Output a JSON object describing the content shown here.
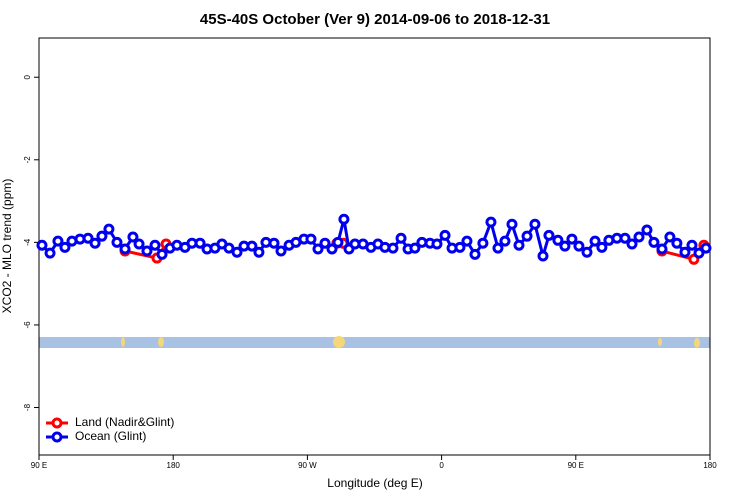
{
  "chart_data": {
    "type": "line",
    "title": "45S-40S October (Ver 9)   2014-09-06 to 2018-12-31",
    "xlabel": "Longitude (deg E)",
    "ylabel": "XCO2 - MLO trend (ppm)",
    "xlim": [
      90,
      540
    ],
    "ylim": [
      -9.15,
      0.95
    ],
    "xticks": [
      {
        "value": 90,
        "label": "90 E"
      },
      180,
      {
        "value": 270,
        "label": "90 W"
      },
      {
        "value": 360,
        "label": "0"
      },
      {
        "value": 450,
        "label": "90 E"
      },
      {
        "value": 540,
        "label": "180"
      }
    ],
    "yticks": [
      0,
      -2,
      -4,
      -6,
      -8
    ],
    "legend": "bottom-left",
    "series": [
      {
        "name": "Land (Nadir&Glint)",
        "color": "#ff0000",
        "x": [
          147.7,
          169.1,
          175.2,
          null,
          289.8,
          293.9,
          null,
          507.8,
          529.2,
          535.9
        ],
        "values": [
          -4.21,
          -4.38,
          -4.04,
          null,
          -4.02,
          -4.02,
          null,
          -4.21,
          -4.41,
          -4.07
        ]
      },
      {
        "name": "Ocean (Glint)",
        "color": "#0000ee",
        "x": [
          92.0,
          97.4,
          102.7,
          107.4,
          112.1,
          117.5,
          122.9,
          127.6,
          132.2,
          136.9,
          142.3,
          147.7,
          153.0,
          157.1,
          162.4,
          167.8,
          172.5,
          177.8,
          182.5,
          187.9,
          192.6,
          198.0,
          202.7,
          208.0,
          212.7,
          217.4,
          222.8,
          227.5,
          232.8,
          237.5,
          242.2,
          247.6,
          252.3,
          257.7,
          262.3,
          267.7,
          272.4,
          277.1,
          281.8,
          286.5,
          290.5,
          294.5,
          297.9,
          301.9,
          307.3,
          312.6,
          317.3,
          322.0,
          327.4,
          332.8,
          337.5,
          342.1,
          346.8,
          352.2,
          356.9,
          362.3,
          367.0,
          372.3,
          377.0,
          382.4,
          387.7,
          393.1,
          397.8,
          402.5,
          407.2,
          411.9,
          417.3,
          422.6,
          428.0,
          432.0,
          438.0,
          442.7,
          447.4,
          452.1,
          457.5,
          462.9,
          467.5,
          472.2,
          477.6,
          483.0,
          487.7,
          492.4,
          497.7,
          502.4,
          507.8,
          513.1,
          517.8,
          523.2,
          527.9,
          532.6,
          537.3
        ],
        "values": [
          -4.07,
          -4.26,
          -3.97,
          -4.12,
          -3.97,
          -3.92,
          -3.9,
          -4.02,
          -3.85,
          -3.68,
          -4.0,
          -4.16,
          -3.87,
          -4.04,
          -4.21,
          -4.07,
          -4.29,
          -4.14,
          -4.07,
          -4.12,
          -4.02,
          -4.02,
          -4.16,
          -4.14,
          -4.04,
          -4.14,
          -4.24,
          -4.09,
          -4.09,
          -4.24,
          -4.0,
          -4.02,
          -4.21,
          -4.07,
          -4.0,
          -3.92,
          -3.92,
          -4.16,
          -4.02,
          -4.16,
          -4.0,
          -3.44,
          -4.16,
          -4.04,
          -4.04,
          -4.12,
          -4.04,
          -4.12,
          -4.14,
          -3.9,
          -4.16,
          -4.14,
          -4.0,
          -4.02,
          -4.04,
          -3.83,
          -4.14,
          -4.12,
          -3.97,
          -4.29,
          -4.02,
          -3.51,
          -4.14,
          -3.97,
          -3.56,
          -4.07,
          -3.85,
          -3.56,
          -4.33,
          -3.83,
          -3.95,
          -4.09,
          -3.92,
          -4.09,
          -4.24,
          -3.97,
          -4.12,
          -3.95,
          -3.9,
          -3.9,
          -4.04,
          -3.87,
          -3.7,
          -4.0,
          -4.16,
          -3.87,
          -4.02,
          -4.24,
          -4.07,
          -4.26,
          -4.14
        ]
      }
    ]
  }
}
